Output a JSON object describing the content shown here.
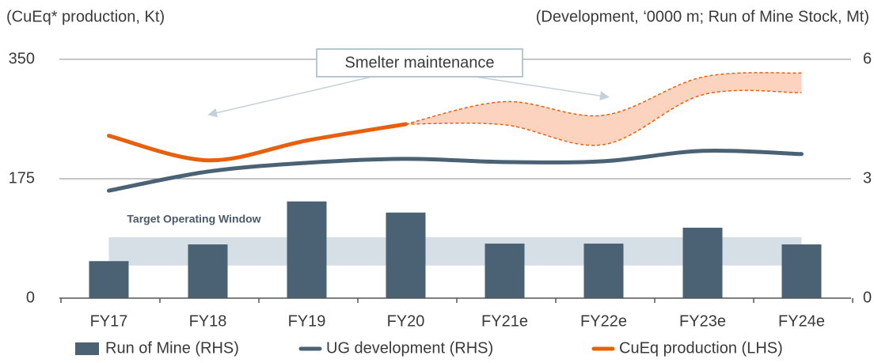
{
  "chart_data": {
    "type": "bar_line",
    "subtitle_left": "(CuEq* production, Kt)",
    "subtitle_right": "(Development, ‘0000 m; Run of Mine Stock, Mt)",
    "categories": [
      "FY17",
      "FY18",
      "FY19",
      "FY20",
      "FY21e",
      "FY22e",
      "FY23e",
      "FY24e"
    ],
    "ylim": [
      0,
      350
    ],
    "yticks": [
      0,
      175,
      350
    ],
    "y2lim": [
      0,
      6
    ],
    "y2ticks": [
      0,
      3,
      6
    ],
    "grid": true,
    "series": [
      {
        "name": "Run of Mine (RHS)",
        "type": "bar",
        "axis": "y2",
        "color": "#4a6274",
        "values": [
          0.93,
          1.35,
          2.43,
          2.15,
          1.37,
          1.37,
          1.77,
          1.35
        ]
      },
      {
        "name": "UG development (RHS)",
        "type": "line",
        "axis": "y2",
        "color": "#4a6274",
        "values": [
          2.7,
          3.18,
          3.4,
          3.5,
          3.42,
          3.44,
          3.7,
          3.62
        ]
      },
      {
        "name": "CuEq production (LHS)",
        "type": "line",
        "axis": "y",
        "color": "#e8600e",
        "values": [
          238,
          202,
          231,
          255,
          null,
          null,
          null,
          null
        ],
        "range_high": [
          null,
          null,
          null,
          255,
          288,
          268,
          324,
          330
        ],
        "range_low": [
          null,
          null,
          null,
          255,
          254,
          225,
          298,
          301
        ],
        "range_color": "#fbd3bf"
      }
    ],
    "target_window": {
      "label": "Target Operating Window",
      "range": [
        0.82,
        1.53
      ],
      "axis": "y2",
      "color": "#d6dee6"
    },
    "annotation": "Smelter maintenance"
  }
}
